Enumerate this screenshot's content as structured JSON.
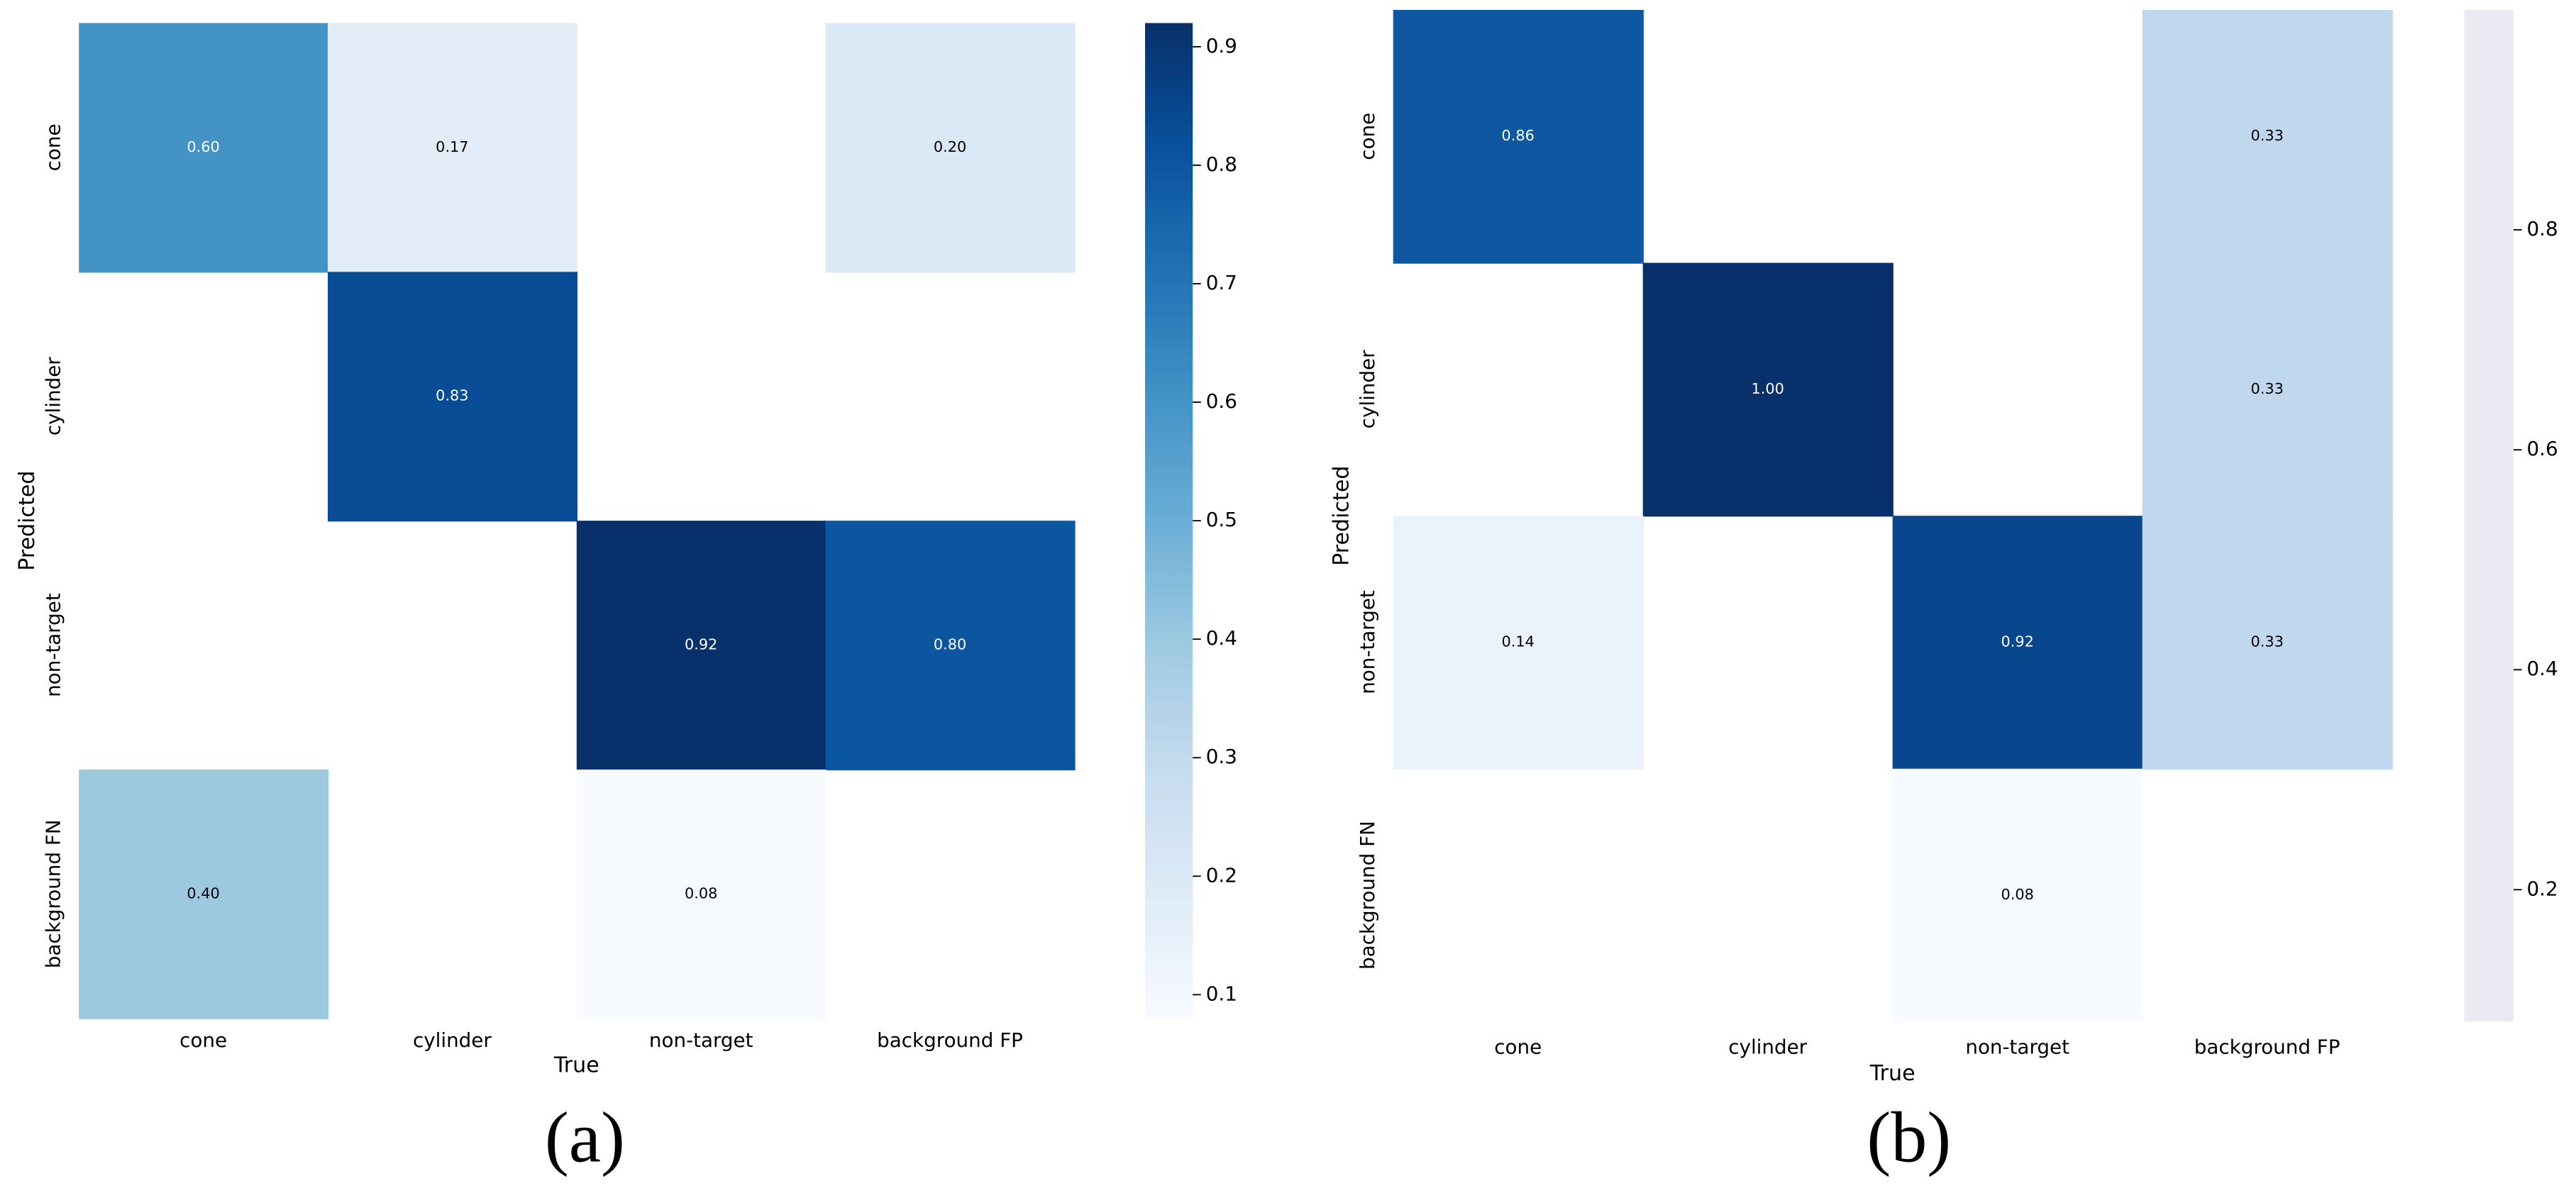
{
  "chart_data": [
    {
      "type": "heatmap",
      "caption": "(a)",
      "xlabel": "True",
      "ylabel": "Predicted",
      "x_categories": [
        "cone",
        "cylinder",
        "non-target",
        "background FP"
      ],
      "y_categories": [
        "cone",
        "cylinder",
        "non-target",
        "background FN"
      ],
      "matrix": [
        [
          0.6,
          0.17,
          null,
          0.2
        ],
        [
          null,
          0.83,
          null,
          null
        ],
        [
          null,
          null,
          0.92,
          0.8
        ],
        [
          0.4,
          null,
          0.08,
          null
        ]
      ],
      "value_labels": [
        [
          "0.60",
          "0.17",
          null,
          "0.20"
        ],
        [
          null,
          "0.83",
          null,
          null
        ],
        [
          null,
          null,
          "0.92",
          "0.80"
        ],
        [
          "0.40",
          null,
          "0.08",
          null
        ]
      ],
      "colormap": "Blues",
      "clim": [
        0.08,
        0.92
      ],
      "cticks": [
        0.1,
        0.2,
        0.3,
        0.4,
        0.5,
        0.6,
        0.7,
        0.8,
        0.9
      ],
      "colorbar_gradient": true
    },
    {
      "type": "heatmap",
      "caption": "(b)",
      "xlabel": "True",
      "ylabel": "Predicted",
      "x_categories": [
        "cone",
        "cylinder",
        "non-target",
        "background FP"
      ],
      "y_categories": [
        "cone",
        "cylinder",
        "non-target",
        "background FN"
      ],
      "matrix": [
        [
          0.86,
          null,
          null,
          0.33
        ],
        [
          null,
          1.0,
          null,
          0.33
        ],
        [
          0.14,
          null,
          0.92,
          0.33
        ],
        [
          null,
          null,
          0.08,
          null
        ]
      ],
      "value_labels": [
        [
          "0.86",
          null,
          null,
          "0.33"
        ],
        [
          null,
          "1.00",
          null,
          "0.33"
        ],
        [
          "0.14",
          null,
          "0.92",
          "0.33"
        ],
        [
          null,
          null,
          "0.08",
          null
        ]
      ],
      "colormap": "Blues",
      "clim": [
        0.08,
        1.0
      ],
      "cticks": [
        0.2,
        0.4,
        0.6,
        0.8
      ],
      "colorbar_gradient": false,
      "colorbar_color": "#eaeaf2"
    }
  ]
}
